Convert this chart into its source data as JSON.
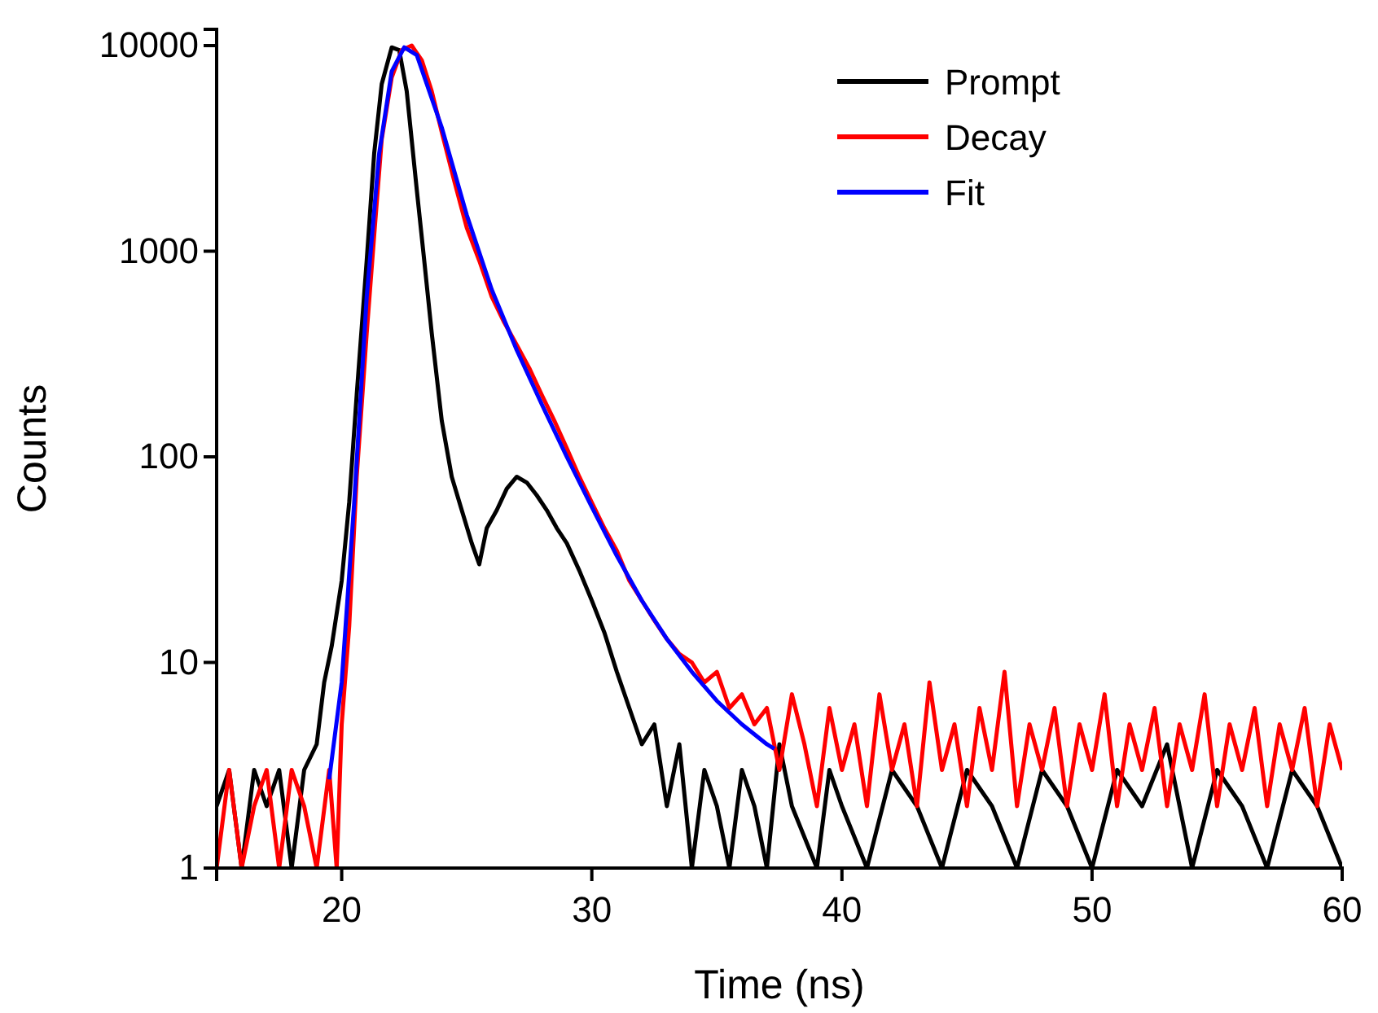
{
  "chart_data": {
    "type": "line",
    "xlabel": "Time (ns)",
    "ylabel": "Counts",
    "xlim": [
      15,
      60
    ],
    "xticks": [
      20,
      30,
      40,
      50,
      60
    ],
    "ylim": [
      1,
      12000
    ],
    "yticks": [
      1,
      10,
      100,
      1000,
      10000
    ],
    "log": "y",
    "grid": false,
    "legend": "top right",
    "marker": "none",
    "line_style": "solid",
    "series": [
      {
        "name": "Prompt",
        "color": "#000000",
        "x": [
          15,
          15.5,
          16,
          16.5,
          17,
          17.5,
          18,
          18.5,
          19,
          19.3,
          19.6,
          20,
          20.3,
          20.6,
          21,
          21.3,
          21.6,
          22,
          22.3,
          22.6,
          23,
          23.3,
          23.6,
          24,
          24.4,
          24.8,
          25.2,
          25.5,
          25.8,
          26.2,
          26.6,
          27,
          27.4,
          27.8,
          28.2,
          28.6,
          29,
          29.5,
          30,
          30.5,
          31,
          31.5,
          32,
          32.5,
          33,
          33.5,
          34,
          34.5,
          35,
          35.5,
          36,
          36.5,
          37,
          37.5,
          38,
          39,
          39.5,
          40,
          41,
          42,
          43,
          44,
          45,
          46,
          47,
          48,
          49,
          50,
          51,
          52,
          53,
          54,
          55,
          56,
          57,
          58,
          59,
          60
        ],
        "values": [
          2,
          3,
          1,
          3,
          2,
          3,
          1,
          3,
          4,
          8,
          12,
          25,
          60,
          200,
          900,
          3000,
          6500,
          9800,
          9500,
          6000,
          2000,
          900,
          400,
          150,
          80,
          55,
          38,
          30,
          45,
          55,
          70,
          80,
          75,
          65,
          55,
          45,
          38,
          28,
          20,
          14,
          9,
          6,
          4,
          5,
          2,
          4,
          1,
          3,
          2,
          1,
          3,
          2,
          1,
          4,
          2,
          1,
          3,
          2,
          1,
          3,
          2,
          1,
          3,
          2,
          1,
          3,
          2,
          1,
          3,
          2,
          4,
          1,
          3,
          2,
          1,
          3,
          2,
          1
        ]
      },
      {
        "name": "Decay",
        "color": "#ff0000",
        "x": [
          15,
          15.5,
          16,
          16.5,
          17,
          17.5,
          18,
          18.5,
          19,
          19.5,
          19.8,
          20,
          20.3,
          20.6,
          21,
          21.3,
          21.6,
          22,
          22.4,
          22.8,
          23.2,
          23.6,
          24,
          24.5,
          25,
          25.5,
          26,
          26.5,
          27,
          27.5,
          28,
          28.5,
          29,
          29.5,
          30,
          30.5,
          31,
          31.5,
          32,
          32.5,
          33,
          33.5,
          34,
          34.5,
          35,
          35.5,
          36,
          36.5,
          37,
          37.5,
          38,
          38.5,
          39,
          39.5,
          40,
          40.5,
          41,
          41.5,
          42,
          42.5,
          43,
          43.5,
          44,
          44.5,
          45,
          45.5,
          46,
          46.5,
          47,
          47.5,
          48,
          48.5,
          49,
          49.5,
          50,
          50.5,
          51,
          51.5,
          52,
          52.5,
          53,
          53.5,
          54,
          54.5,
          55,
          55.5,
          56,
          56.5,
          57,
          57.5,
          58,
          58.5,
          59,
          59.5,
          60
        ],
        "values": [
          1,
          3,
          1,
          2,
          3,
          1,
          3,
          2,
          1,
          3,
          1,
          5,
          15,
          80,
          400,
          1200,
          3500,
          7000,
          9500,
          10000,
          8500,
          6000,
          3800,
          2200,
          1300,
          900,
          600,
          450,
          350,
          270,
          200,
          150,
          110,
          80,
          60,
          45,
          35,
          25,
          20,
          16,
          13,
          11,
          10,
          8,
          9,
          6,
          7,
          5,
          6,
          3,
          7,
          4,
          2,
          6,
          3,
          5,
          2,
          7,
          3,
          5,
          2,
          8,
          3,
          5,
          2,
          6,
          3,
          9,
          2,
          5,
          3,
          6,
          2,
          5,
          3,
          7,
          2,
          5,
          3,
          6,
          2,
          5,
          3,
          7,
          2,
          5,
          3,
          6,
          2,
          5,
          3,
          6,
          2,
          5,
          3
        ]
      },
      {
        "name": "Fit",
        "color": "#0000ff",
        "x": [
          19.5,
          20,
          20.5,
          21,
          21.5,
          22,
          22.5,
          23,
          24,
          25,
          26,
          27,
          28,
          29,
          30,
          31,
          32,
          33,
          34,
          35,
          36,
          37,
          37.3
        ],
        "values": [
          2.7,
          8,
          60,
          600,
          3000,
          7500,
          9800,
          9000,
          4000,
          1500,
          650,
          330,
          180,
          100,
          57,
          33,
          20,
          13,
          9,
          6.5,
          5,
          4,
          3.8
        ]
      }
    ]
  }
}
